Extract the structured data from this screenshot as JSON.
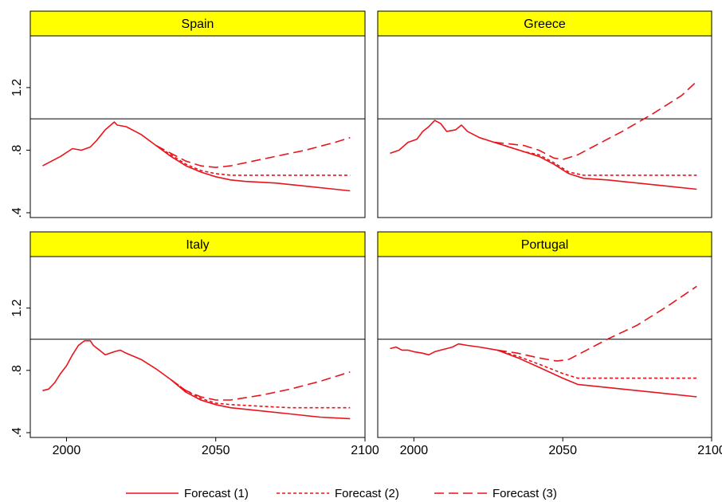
{
  "colors": {
    "series": "#e8141c",
    "strip": "#ffff00",
    "axis": "#000000"
  },
  "chart_data": {
    "type": "line",
    "layout": "2x2 facets",
    "xlim": [
      1990,
      2100
    ],
    "ylim": [
      0.4,
      1.5
    ],
    "x_ticks": [
      2000,
      2050,
      2100
    ],
    "x_tick_labels": [
      "2000",
      "2050",
      "2100"
    ],
    "y_ticks": [
      0.4,
      0.8,
      1.2
    ],
    "y_tick_labels": [
      ".4",
      ".8",
      "1.2"
    ],
    "reference_line_y": 1.0,
    "legend": {
      "position": "bottom",
      "entries": [
        {
          "label": "Forecast (1)",
          "dash": "solid"
        },
        {
          "label": "Forecast (2)",
          "dash": "short-dash"
        },
        {
          "label": "Forecast (3)",
          "dash": "long-dash"
        }
      ]
    },
    "panels": [
      {
        "title": "Spain",
        "series": [
          {
            "name": "Forecast (1)",
            "points": [
              [
                1992,
                0.7
              ],
              [
                1995,
                0.73
              ],
              [
                1998,
                0.76
              ],
              [
                2002,
                0.81
              ],
              [
                2005,
                0.8
              ],
              [
                2008,
                0.82
              ],
              [
                2010,
                0.86
              ],
              [
                2013,
                0.93
              ],
              [
                2016,
                0.98
              ],
              [
                2017,
                0.96
              ],
              [
                2020,
                0.95
              ],
              [
                2025,
                0.9
              ],
              [
                2030,
                0.83
              ],
              [
                2035,
                0.76
              ],
              [
                2040,
                0.7
              ],
              [
                2045,
                0.66
              ],
              [
                2050,
                0.63
              ],
              [
                2055,
                0.61
              ],
              [
                2060,
                0.6
              ],
              [
                2070,
                0.59
              ],
              [
                2080,
                0.57
              ],
              [
                2090,
                0.55
              ],
              [
                2095,
                0.54
              ]
            ]
          },
          {
            "name": "Forecast (2)",
            "points": [
              [
                2030,
                0.83
              ],
              [
                2035,
                0.77
              ],
              [
                2040,
                0.71
              ],
              [
                2045,
                0.67
              ],
              [
                2050,
                0.65
              ],
              [
                2055,
                0.64
              ],
              [
                2060,
                0.64
              ],
              [
                2070,
                0.64
              ],
              [
                2080,
                0.64
              ],
              [
                2090,
                0.64
              ],
              [
                2095,
                0.64
              ]
            ]
          },
          {
            "name": "Forecast (3)",
            "points": [
              [
                2030,
                0.83
              ],
              [
                2035,
                0.78
              ],
              [
                2040,
                0.73
              ],
              [
                2045,
                0.7
              ],
              [
                2050,
                0.69
              ],
              [
                2055,
                0.7
              ],
              [
                2060,
                0.72
              ],
              [
                2070,
                0.76
              ],
              [
                2080,
                0.8
              ],
              [
                2090,
                0.85
              ],
              [
                2095,
                0.88
              ]
            ]
          }
        ]
      },
      {
        "title": "Greece",
        "series": [
          {
            "name": "Forecast (1)",
            "points": [
              [
                1992,
                0.78
              ],
              [
                1995,
                0.8
              ],
              [
                1998,
                0.85
              ],
              [
                2001,
                0.87
              ],
              [
                2003,
                0.92
              ],
              [
                2005,
                0.95
              ],
              [
                2007,
                0.99
              ],
              [
                2009,
                0.97
              ],
              [
                2011,
                0.92
              ],
              [
                2014,
                0.93
              ],
              [
                2016,
                0.96
              ],
              [
                2018,
                0.92
              ],
              [
                2022,
                0.88
              ],
              [
                2027,
                0.85
              ],
              [
                2032,
                0.82
              ],
              [
                2037,
                0.79
              ],
              [
                2042,
                0.76
              ],
              [
                2047,
                0.71
              ],
              [
                2052,
                0.65
              ],
              [
                2057,
                0.62
              ],
              [
                2065,
                0.61
              ],
              [
                2075,
                0.59
              ],
              [
                2085,
                0.57
              ],
              [
                2095,
                0.55
              ]
            ]
          },
          {
            "name": "Forecast (2)",
            "points": [
              [
                2027,
                0.85
              ],
              [
                2032,
                0.82
              ],
              [
                2037,
                0.79
              ],
              [
                2042,
                0.77
              ],
              [
                2047,
                0.72
              ],
              [
                2052,
                0.66
              ],
              [
                2057,
                0.64
              ],
              [
                2065,
                0.64
              ],
              [
                2075,
                0.64
              ],
              [
                2085,
                0.64
              ],
              [
                2095,
                0.64
              ]
            ]
          },
          {
            "name": "Forecast (3)",
            "points": [
              [
                2027,
                0.85
              ],
              [
                2032,
                0.84
              ],
              [
                2037,
                0.83
              ],
              [
                2042,
                0.8
              ],
              [
                2047,
                0.75
              ],
              [
                2050,
                0.74
              ],
              [
                2055,
                0.77
              ],
              [
                2060,
                0.82
              ],
              [
                2070,
                0.92
              ],
              [
                2080,
                1.03
              ],
              [
                2090,
                1.15
              ],
              [
                2095,
                1.24
              ]
            ]
          }
        ]
      },
      {
        "title": "Italy",
        "series": [
          {
            "name": "Forecast (1)",
            "points": [
              [
                1992,
                0.67
              ],
              [
                1994,
                0.68
              ],
              [
                1996,
                0.72
              ],
              [
                1998,
                0.78
              ],
              [
                2000,
                0.83
              ],
              [
                2002,
                0.9
              ],
              [
                2004,
                0.96
              ],
              [
                2006,
                0.99
              ],
              [
                2008,
                0.99
              ],
              [
                2009,
                0.96
              ],
              [
                2011,
                0.93
              ],
              [
                2013,
                0.9
              ],
              [
                2016,
                0.92
              ],
              [
                2018,
                0.93
              ],
              [
                2020,
                0.91
              ],
              [
                2025,
                0.87
              ],
              [
                2030,
                0.81
              ],
              [
                2035,
                0.74
              ],
              [
                2040,
                0.66
              ],
              [
                2045,
                0.61
              ],
              [
                2050,
                0.58
              ],
              [
                2055,
                0.56
              ],
              [
                2065,
                0.54
              ],
              [
                2075,
                0.52
              ],
              [
                2085,
                0.5
              ],
              [
                2095,
                0.49
              ]
            ]
          },
          {
            "name": "Forecast (2)",
            "points": [
              [
                2035,
                0.74
              ],
              [
                2040,
                0.67
              ],
              [
                2045,
                0.62
              ],
              [
                2050,
                0.59
              ],
              [
                2055,
                0.58
              ],
              [
                2065,
                0.57
              ],
              [
                2075,
                0.56
              ],
              [
                2085,
                0.56
              ],
              [
                2095,
                0.56
              ]
            ]
          },
          {
            "name": "Forecast (3)",
            "points": [
              [
                2035,
                0.74
              ],
              [
                2040,
                0.67
              ],
              [
                2045,
                0.63
              ],
              [
                2050,
                0.61
              ],
              [
                2055,
                0.61
              ],
              [
                2065,
                0.64
              ],
              [
                2075,
                0.68
              ],
              [
                2085,
                0.73
              ],
              [
                2095,
                0.79
              ]
            ]
          }
        ]
      },
      {
        "title": "Portugal",
        "series": [
          {
            "name": "Forecast (1)",
            "points": [
              [
                1992,
                0.94
              ],
              [
                1994,
                0.95
              ],
              [
                1996,
                0.93
              ],
              [
                1998,
                0.93
              ],
              [
                2000,
                0.92
              ],
              [
                2003,
                0.91
              ],
              [
                2005,
                0.9
              ],
              [
                2007,
                0.92
              ],
              [
                2009,
                0.93
              ],
              [
                2011,
                0.94
              ],
              [
                2013,
                0.95
              ],
              [
                2015,
                0.97
              ],
              [
                2018,
                0.96
              ],
              [
                2022,
                0.95
              ],
              [
                2028,
                0.93
              ],
              [
                2035,
                0.88
              ],
              [
                2042,
                0.82
              ],
              [
                2050,
                0.75
              ],
              [
                2055,
                0.71
              ],
              [
                2065,
                0.69
              ],
              [
                2075,
                0.67
              ],
              [
                2085,
                0.65
              ],
              [
                2095,
                0.63
              ]
            ]
          },
          {
            "name": "Forecast (2)",
            "points": [
              [
                2028,
                0.93
              ],
              [
                2035,
                0.89
              ],
              [
                2042,
                0.84
              ],
              [
                2050,
                0.78
              ],
              [
                2055,
                0.75
              ],
              [
                2065,
                0.75
              ],
              [
                2075,
                0.75
              ],
              [
                2085,
                0.75
              ],
              [
                2095,
                0.75
              ]
            ]
          },
          {
            "name": "Forecast (3)",
            "points": [
              [
                2028,
                0.93
              ],
              [
                2035,
                0.91
              ],
              [
                2042,
                0.88
              ],
              [
                2048,
                0.86
              ],
              [
                2052,
                0.87
              ],
              [
                2058,
                0.93
              ],
              [
                2065,
                1.0
              ],
              [
                2075,
                1.09
              ],
              [
                2085,
                1.21
              ],
              [
                2095,
                1.34
              ]
            ]
          }
        ]
      }
    ]
  }
}
